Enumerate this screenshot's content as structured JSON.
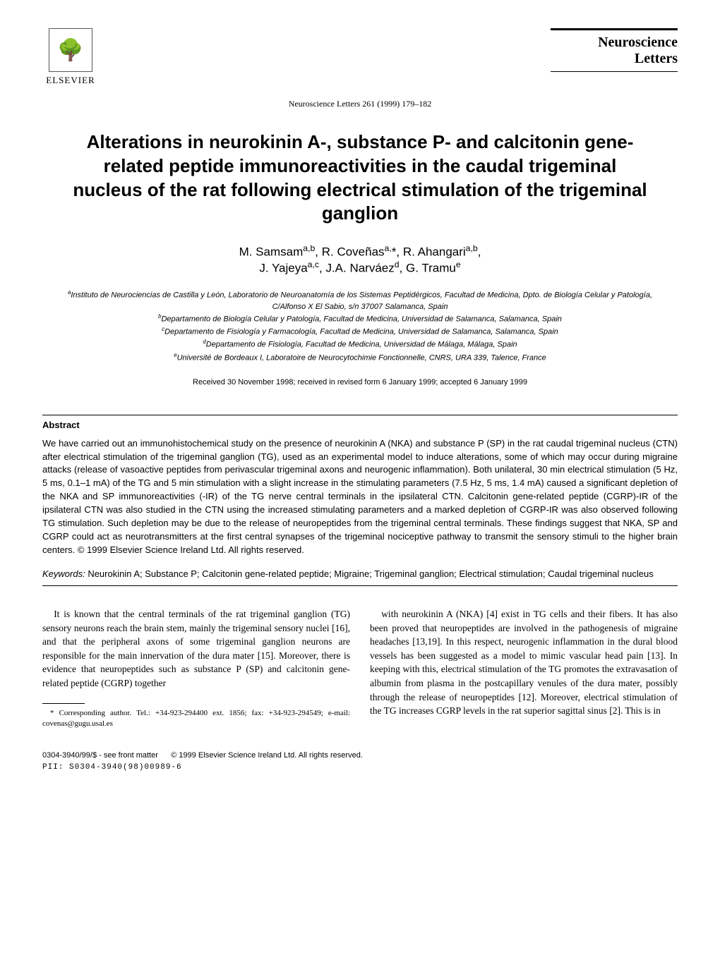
{
  "publisher": {
    "name": "ELSEVIER",
    "tree_glyph": "🌳"
  },
  "journal": {
    "name_line1": "Neuroscience",
    "name_line2": "Letters",
    "citation": "Neuroscience Letters 261 (1999) 179–182"
  },
  "title": "Alterations in neurokinin A-, substance P- and calcitonin gene-related peptide immunoreactivities in the caudal trigeminal nucleus of the rat following electrical stimulation of the trigeminal ganglion",
  "authors_html": "M. Samsam<sup>a,b</sup>, R. Coveñas<sup>a,</sup>*, R. Ahangari<sup>a,b</sup>,<br>J. Yajeya<sup>a,c</sup>, J.A. Narváez<sup>d</sup>, G. Tramu<sup>e</sup>",
  "affiliations": [
    "<sup>a</sup>Instituto de Neurociencias de Castilla y León, Laboratorio de Neuroanatomía de los Sistemas Peptidérgicos, Facultad de Medicina, Dpto. de Biología Celular y Patología, C/Alfonso X El Sabio, s/n 37007 Salamanca, Spain",
    "<sup>b</sup>Departamento de Biología Celular y Patología, Facultad de Medicina, Universidad de Salamanca, Salamanca, Spain",
    "<sup>c</sup>Departamento de Fisiología y Farmacología, Facultad de Medicina, Universidad de Salamanca, Salamanca, Spain",
    "<sup>d</sup>Departamento de Fisiología, Facultad de Medicina, Universidad de Málaga, Málaga, Spain",
    "<sup>e</sup>Université de Bordeaux I, Laboratoire de Neurocytochimie Fonctionnelle, CNRS, URA 339, Talence, France"
  ],
  "received": "Received 30 November 1998; received in revised form 6 January 1999; accepted 6 January 1999",
  "abstract": {
    "heading": "Abstract",
    "text": "We have carried out an immunohistochemical study on the presence of neurokinin A (NKA) and substance P (SP) in the rat caudal trigeminal nucleus (CTN) after electrical stimulation of the trigeminal ganglion (TG), used as an experimental model to induce alterations, some of which may occur during migraine attacks (release of vasoactive peptides from perivascular trigeminal axons and neurogenic inflammation). Both unilateral, 30 min electrical stimulation (5 Hz, 5 ms, 0.1–1 mA) of the TG and 5 min stimulation with a slight increase in the stimulating parameters (7.5 Hz, 5 ms, 1.4 mA) caused a significant depletion of the NKA and SP immunoreactivities (-IR) of the TG nerve central terminals in the ipsilateral CTN. Calcitonin gene-related peptide (CGRP)-IR of the ipsilateral CTN was also studied in the CTN using the increased stimulating parameters and a marked depletion of CGRP-IR was also observed following TG stimulation. Such depletion may be due to the release of neuropeptides from the trigeminal central terminals. These findings suggest that NKA, SP and CGRP could act as neurotransmitters at the first central synapses of the trigeminal nociceptive pathway to transmit the sensory stimuli to the higher brain centers. © 1999 Elsevier Science Ireland Ltd. All rights reserved."
  },
  "keywords": {
    "label": "Keywords:",
    "text": " Neurokinin A; Substance P; Calcitonin gene-related peptide; Migraine; Trigeminal ganglion; Electrical stimulation; Caudal trigeminal nucleus"
  },
  "body": {
    "col1": "It is known that the central terminals of the rat trigeminal ganglion (TG) sensory neurons reach the brain stem, mainly the trigeminal sensory nuclei [16], and that the peripheral axons of some trigeminal ganglion neurons are responsible for the main innervation of the dura mater [15]. Moreover, there is evidence that neuropeptides such as substance P (SP) and calcitonin gene-related peptide (CGRP) together",
    "col2": "with neurokinin A (NKA) [4] exist in TG cells and their fibers. It has also been proved that neuropeptides are involved in the pathogenesis of migraine headaches [13,19]. In this respect, neurogenic inflammation in the dural blood vessels has been suggested as a model to mimic vascular head pain [13]. In keeping with this, electrical stimulation of the TG promotes the extravasation of albumin from plasma in the postcapillary venules of the dura mater, possibly through the release of neuropeptides [12]. Moreover, electrical stimulation of the TG increases CGRP levels in the rat superior sagittal sinus [2]. This is in"
  },
  "footnote": "* Corresponding author. Tel.: +34-923-294400 ext. 1856; fax: +34-923-294549; e-mail: covenas@gugu.usal.es",
  "footer": {
    "left_line1": "0304-3940/99/$ - see front matter",
    "left_line2": "PII: S0304-3940(98)00989-6",
    "center": "© 1999 Elsevier Science Ireland Ltd. All rights reserved."
  },
  "style": {
    "page_bg": "#ffffff",
    "text_color": "#000000",
    "title_fontsize": 26,
    "authors_fontsize": 17,
    "affil_fontsize": 11,
    "body_fontsize": 13.5,
    "abstract_fontsize": 13,
    "footnote_fontsize": 11,
    "footer_fontsize": 11
  }
}
